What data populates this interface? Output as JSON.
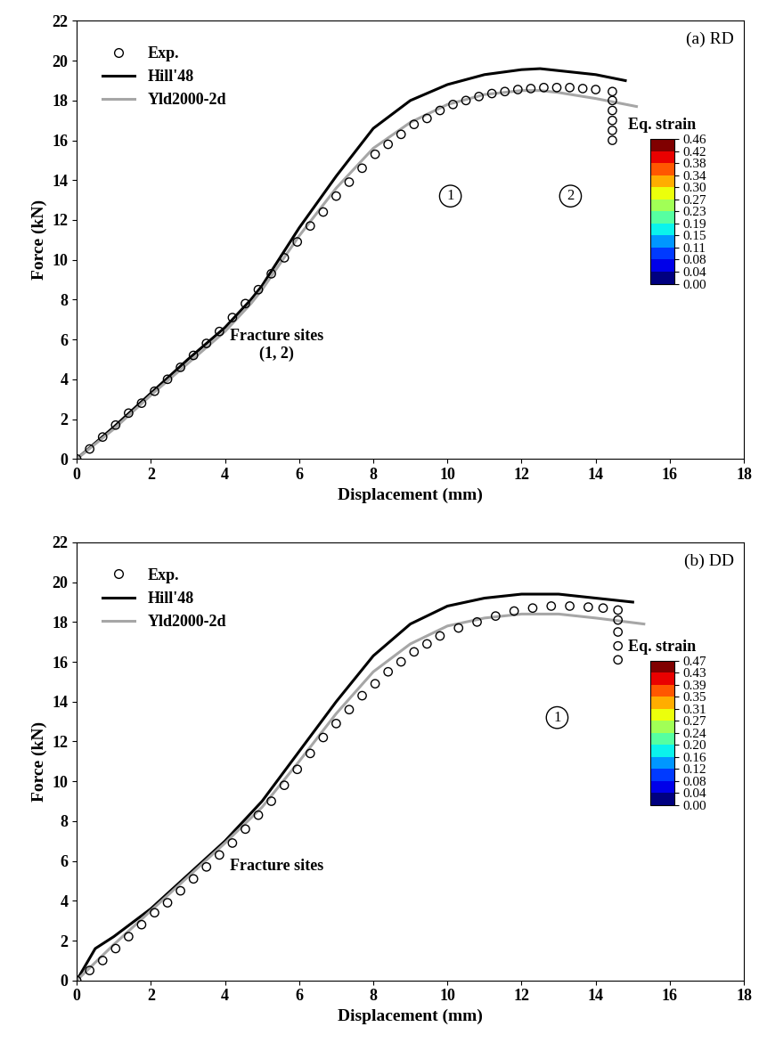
{
  "chart_data": [
    {
      "type": "line",
      "title": "(a) RD",
      "x_label": "Displacement (mm)",
      "y_label": "Force (kN)",
      "xlim": [
        0,
        18
      ],
      "xticks": [
        0,
        2,
        4,
        6,
        8,
        10,
        12,
        14,
        16,
        18
      ],
      "ylim": [
        0,
        22
      ],
      "yticks": [
        0,
        2,
        4,
        6,
        8,
        10,
        12,
        14,
        16,
        18,
        20,
        22
      ],
      "legend": "upper left",
      "series": [
        {
          "name": "Exp.",
          "type": "scatter",
          "marker": "circle",
          "color": "#000000",
          "x": [
            0,
            0.35,
            0.7,
            1.05,
            1.4,
            1.75,
            2.1,
            2.45,
            2.8,
            3.15,
            3.5,
            3.85,
            4.2,
            4.55,
            4.9,
            5.25,
            5.6,
            5.95,
            6.3,
            6.65,
            7.0,
            7.35,
            7.7,
            8.05,
            8.4,
            8.75,
            9.1,
            9.45,
            9.8,
            10.15,
            10.5,
            10.85,
            11.2,
            11.55,
            11.9,
            12.25,
            12.6,
            12.95,
            13.3,
            13.65,
            14.0,
            14.45,
            14.45,
            14.45,
            14.45,
            14.45,
            14.45
          ],
          "values": [
            0,
            0.5,
            1.1,
            1.7,
            2.3,
            2.8,
            3.4,
            4.0,
            4.6,
            5.2,
            5.8,
            6.4,
            7.1,
            7.8,
            8.5,
            9.3,
            10.1,
            10.9,
            11.7,
            12.4,
            13.2,
            13.9,
            14.6,
            15.3,
            15.8,
            16.3,
            16.8,
            17.1,
            17.5,
            17.8,
            18.0,
            18.2,
            18.35,
            18.45,
            18.55,
            18.6,
            18.65,
            18.65,
            18.65,
            18.6,
            18.55,
            18.45,
            18.0,
            17.5,
            17.0,
            16.5,
            16.0
          ]
        },
        {
          "name": "Hill'48",
          "type": "line",
          "line_style": "solid",
          "color": "#000000",
          "x": [
            0,
            1,
            2,
            3,
            4,
            4.7,
            5,
            6,
            7,
            8,
            9,
            10,
            11,
            12,
            12.5,
            13,
            14,
            14.8
          ],
          "values": [
            0,
            1.6,
            3.3,
            5.0,
            6.6,
            8.0,
            8.7,
            11.6,
            14.2,
            16.6,
            18.0,
            18.8,
            19.3,
            19.55,
            19.6,
            19.5,
            19.3,
            19.0
          ]
        },
        {
          "name": "Yld2000-2d",
          "type": "line",
          "line_style": "solid",
          "color": "#a6a6a6",
          "x": [
            0,
            1,
            2,
            3,
            4,
            4.7,
            5,
            6,
            7,
            8,
            9,
            10,
            11,
            12,
            12.5,
            13,
            14,
            15.1
          ],
          "values": [
            0,
            1.5,
            3.2,
            4.8,
            6.4,
            7.8,
            8.5,
            11.2,
            13.6,
            15.6,
            16.9,
            17.8,
            18.3,
            18.5,
            18.5,
            18.4,
            18.1,
            17.7
          ]
        }
      ],
      "fracture_labels": [
        "1",
        "2"
      ],
      "annotation": "Fracture sites\n(1, 2)",
      "colorbar": {
        "label": "Eq. strain",
        "range": [
          0,
          0.46
        ],
        "ticks": [
          {
            "value": 0,
            "label": "0.00"
          },
          {
            "value": 0.04,
            "label": "0.04"
          },
          {
            "value": 0.08,
            "label": "0.08"
          },
          {
            "value": 0.11,
            "label": "0.11"
          },
          {
            "value": 0.15,
            "label": "0.15"
          },
          {
            "value": 0.19,
            "label": "0.19"
          },
          {
            "value": 0.23,
            "label": "0.23"
          },
          {
            "value": 0.27,
            "label": "0.27"
          },
          {
            "value": 0.3,
            "label": "0.30"
          },
          {
            "value": 0.34,
            "label": "0.34"
          },
          {
            "value": 0.38,
            "label": "0.38"
          },
          {
            "value": 0.42,
            "label": "0.42"
          },
          {
            "value": 0.46,
            "label": "0.46"
          }
        ]
      }
    },
    {
      "type": "line",
      "title": "(b) DD",
      "x_label": "Displacement (mm)",
      "y_label": "Force (kN)",
      "xlim": [
        0,
        18
      ],
      "xticks": [
        0,
        2,
        4,
        6,
        8,
        10,
        12,
        14,
        16,
        18
      ],
      "ylim": [
        0,
        22
      ],
      "yticks": [
        0,
        2,
        4,
        6,
        8,
        10,
        12,
        14,
        16,
        18,
        20,
        22
      ],
      "legend": "upper left",
      "series": [
        {
          "name": "Exp.",
          "type": "scatter",
          "marker": "circle",
          "color": "#000000",
          "x": [
            0,
            0.35,
            0.7,
            1.05,
            1.4,
            1.75,
            2.1,
            2.45,
            2.8,
            3.15,
            3.5,
            3.85,
            4.2,
            4.55,
            4.9,
            5.25,
            5.6,
            5.95,
            6.3,
            6.65,
            7.0,
            7.35,
            7.7,
            8.05,
            8.4,
            8.75,
            9.1,
            9.45,
            9.8,
            10.3,
            10.8,
            11.3,
            11.8,
            12.3,
            12.8,
            13.3,
            13.8,
            14.2,
            14.6,
            14.6,
            14.6,
            14.6,
            14.6
          ],
          "values": [
            0,
            0.5,
            1.0,
            1.6,
            2.2,
            2.8,
            3.4,
            3.9,
            4.5,
            5.1,
            5.7,
            6.3,
            6.9,
            7.6,
            8.3,
            9.0,
            9.8,
            10.6,
            11.4,
            12.2,
            12.9,
            13.6,
            14.3,
            14.9,
            15.5,
            16.0,
            16.5,
            16.9,
            17.3,
            17.7,
            18.0,
            18.3,
            18.55,
            18.7,
            18.8,
            18.8,
            18.75,
            18.7,
            18.6,
            18.1,
            17.5,
            16.8,
            16.1
          ]
        },
        {
          "name": "Hill'48",
          "type": "line",
          "line_style": "solid",
          "color": "#000000",
          "x": [
            0,
            0.5,
            1,
            2,
            4,
            5,
            6,
            7,
            8,
            9,
            10,
            11,
            12,
            13,
            14,
            15
          ],
          "values": [
            0,
            1.6,
            2.2,
            3.6,
            7.0,
            9.0,
            11.5,
            14.0,
            16.3,
            17.9,
            18.8,
            19.2,
            19.4,
            19.4,
            19.2,
            19.0
          ]
        },
        {
          "name": "Yld2000-2d",
          "type": "line",
          "line_style": "solid",
          "color": "#a6a6a6",
          "x": [
            0,
            1,
            2,
            4,
            5,
            6,
            7,
            8,
            9,
            10,
            11,
            12,
            13,
            14,
            15.3
          ],
          "values": [
            0,
            1.8,
            3.5,
            6.9,
            8.7,
            11.0,
            13.4,
            15.5,
            16.9,
            17.8,
            18.2,
            18.4,
            18.4,
            18.2,
            17.9
          ]
        }
      ],
      "fracture_labels": [
        "1"
      ],
      "annotation": "Fracture sites",
      "colorbar": {
        "label": "Eq. strain",
        "range": [
          0,
          0.47
        ],
        "ticks": [
          {
            "value": 0,
            "label": "0.00"
          },
          {
            "value": 0.04,
            "label": "0.04"
          },
          {
            "value": 0.08,
            "label": "0.08"
          },
          {
            "value": 0.12,
            "label": "0.12"
          },
          {
            "value": 0.16,
            "label": "0.16"
          },
          {
            "value": 0.2,
            "label": "0.20"
          },
          {
            "value": 0.24,
            "label": "0.24"
          },
          {
            "value": 0.27,
            "label": "0.27"
          },
          {
            "value": 0.31,
            "label": "0.31"
          },
          {
            "value": 0.35,
            "label": "0.35"
          },
          {
            "value": 0.39,
            "label": "0.39"
          },
          {
            "value": 0.43,
            "label": "0.43"
          },
          {
            "value": 0.47,
            "label": "0.47"
          }
        ]
      }
    }
  ]
}
